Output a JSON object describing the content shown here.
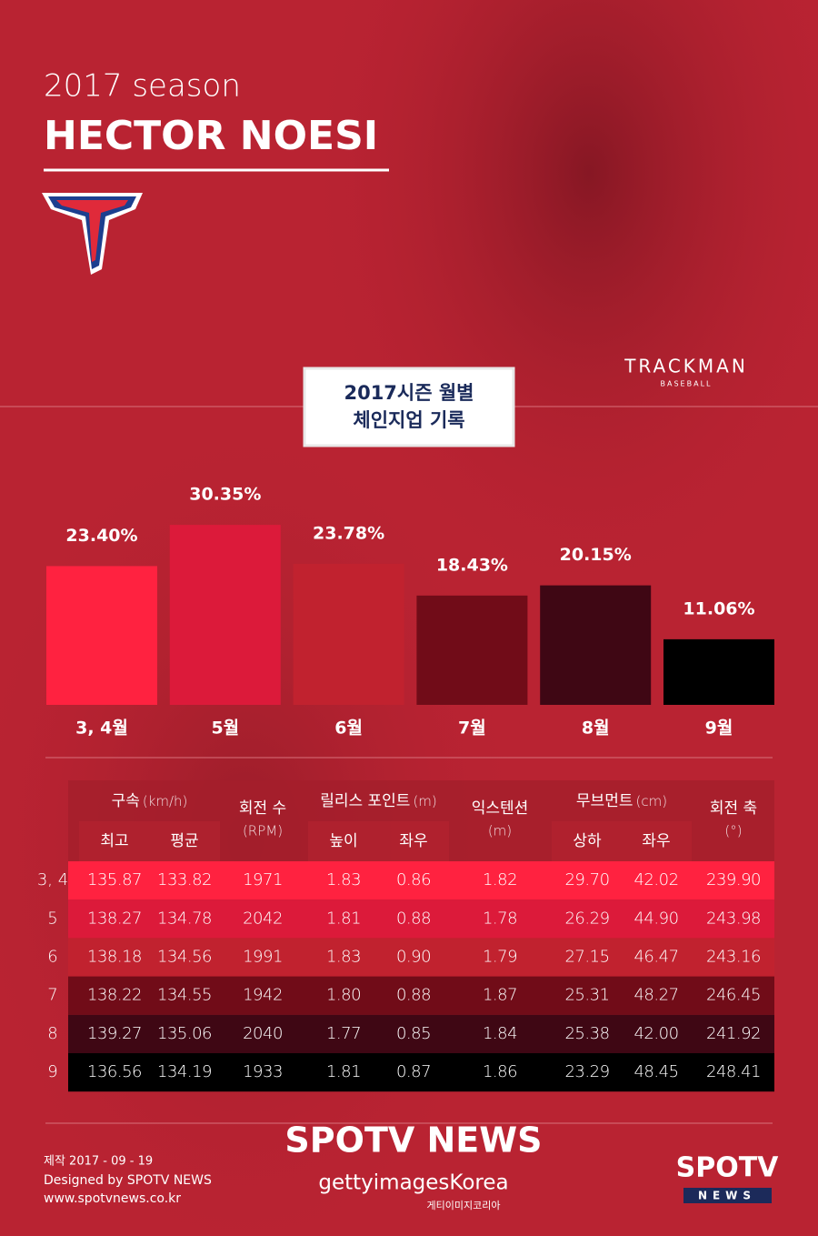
{
  "header": {
    "season": "2017 season",
    "player": "HECTOR NOESI",
    "brand": "TRACKMAN",
    "brand_sub": "BASEBALL"
  },
  "chart_data": {
    "type": "bar",
    "title": "2017시즌 월별",
    "subtitle": "체인지업 기록",
    "categories": [
      "3, 4월",
      "5월",
      "6월",
      "7월",
      "8월",
      "9월"
    ],
    "values": [
      23.4,
      30.35,
      23.78,
      18.43,
      20.15,
      11.06
    ],
    "value_labels": [
      "23.40%",
      "30.35%",
      "23.78%",
      "18.43%",
      "20.15%",
      "11.06%"
    ],
    "colors": [
      "#ff2240",
      "#dc1a3a",
      "#c1222f",
      "#710c18",
      "#3f0714",
      "#000000"
    ]
  },
  "table": {
    "groups": [
      {
        "label": "구속",
        "unit": "(km/h)",
        "columns": [
          "최고",
          "평균"
        ]
      },
      {
        "label": "회전 수",
        "unit": "(RPM)"
      },
      {
        "label": "릴리스 포인트",
        "unit": "(m)",
        "columns": [
          "높이",
          "좌우"
        ]
      },
      {
        "label": "익스텐션",
        "unit": "(m)"
      },
      {
        "label": "무브먼트",
        "unit": "(cm)",
        "columns": [
          "상하",
          "좌우"
        ]
      },
      {
        "label": "회전 축",
        "unit": "(°)"
      }
    ],
    "rows": [
      {
        "label": "3, 4",
        "cells": [
          "135.87",
          "133.82",
          "1971",
          "1.83",
          "0.86",
          "1.82",
          "29.70",
          "42.02",
          "239.90"
        ]
      },
      {
        "label": "5",
        "cells": [
          "138.27",
          "134.78",
          "2042",
          "1.81",
          "0.88",
          "1.78",
          "26.29",
          "44.90",
          "243.98"
        ]
      },
      {
        "label": "6",
        "cells": [
          "138.18",
          "134.56",
          "1991",
          "1.83",
          "0.90",
          "1.79",
          "27.15",
          "46.47",
          "243.16"
        ]
      },
      {
        "label": "7",
        "cells": [
          "138.22",
          "134.55",
          "1942",
          "1.80",
          "0.88",
          "1.87",
          "25.31",
          "48.27",
          "246.45"
        ]
      },
      {
        "label": "8",
        "cells": [
          "139.27",
          "135.06",
          "2040",
          "1.77",
          "0.85",
          "1.84",
          "25.38",
          "42.00",
          "241.92"
        ]
      },
      {
        "label": "9",
        "cells": [
          "136.56",
          "134.19",
          "1933",
          "1.81",
          "0.87",
          "1.86",
          "23.29",
          "48.45",
          "248.41"
        ]
      }
    ]
  },
  "footer": {
    "date": "제작 2017 - 09 - 19",
    "designer": "Designed by SPOTV NEWS",
    "url": "www.spotvnews.co.kr",
    "brand": "SPOTV NEWS",
    "getty": "gettyimagesKorea",
    "getty_kr": "게티이미지코리아",
    "logo_top": "SPOTV",
    "logo_bottom": "NEWS"
  }
}
